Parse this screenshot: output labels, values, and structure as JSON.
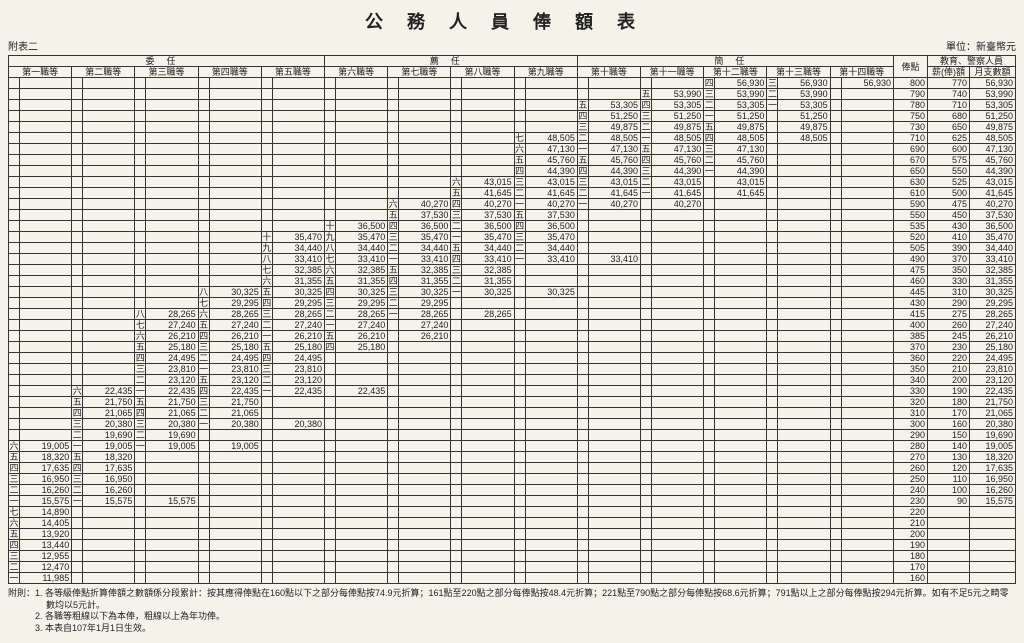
{
  "title": "公務人員俸額表",
  "attachment": "附表二",
  "unit": "單位：新臺幣元",
  "group_headers": [
    "委任",
    "薦任",
    "簡任"
  ],
  "grade_headers": [
    "第一職等",
    "第二職等",
    "第三職等",
    "第四職等",
    "第五職等",
    "第六職等",
    "第七職等",
    "第八職等",
    "第九職等",
    "第十職等",
    "第十一職等",
    "第十二職等",
    "第十三職等",
    "第十四職等"
  ],
  "right_headers": {
    "point": "俸點",
    "edu_group": "教育、警察人員",
    "salary": "薪(俸)額",
    "monthly": "月支數額"
  },
  "cn_num": {
    "1": "一",
    "2": "二",
    "3": "三",
    "4": "四",
    "5": "五",
    "6": "六",
    "7": "七",
    "8": "八",
    "9": "九",
    "10": "十"
  },
  "rows": [
    {
      "point": "800",
      "salary": "770",
      "monthly": "56,930",
      "cells": {
        "12": [
          "四",
          "56,930"
        ],
        "13": [
          "三",
          "56,930"
        ],
        "14": [
          "",
          "56,930"
        ]
      }
    },
    {
      "point": "790",
      "salary": "740",
      "monthly": "53,990",
      "cells": {
        "11": [
          "五",
          "53,990"
        ],
        "12": [
          "三",
          "53,990"
        ],
        "13": [
          "二",
          "53,990"
        ]
      }
    },
    {
      "point": "780",
      "salary": "710",
      "monthly": "53,305",
      "cells": {
        "10": [
          "五",
          "53,305"
        ],
        "11": [
          "四",
          "53,305"
        ],
        "12": [
          "二",
          "53,305"
        ],
        "13": [
          "一",
          "53,305"
        ]
      }
    },
    {
      "point": "750",
      "salary": "680",
      "monthly": "51,250",
      "cells": {
        "10": [
          "四",
          "51,250"
        ],
        "11": [
          "三",
          "51,250"
        ],
        "12": [
          "一",
          "51,250"
        ],
        "13": [
          "",
          "51,250"
        ]
      }
    },
    {
      "point": "730",
      "salary": "650",
      "monthly": "49,875",
      "cells": {
        "10": [
          "三",
          "49,875"
        ],
        "11": [
          "二",
          "49,875"
        ],
        "12": [
          "五",
          "49,875"
        ],
        "13": [
          "",
          "49,875"
        ]
      }
    },
    {
      "point": "710",
      "salary": "625",
      "monthly": "48,505",
      "cells": {
        "9": [
          "七",
          "48,505"
        ],
        "10": [
          "二",
          "48,505"
        ],
        "11": [
          "一",
          "48,505"
        ],
        "12": [
          "四",
          "48,505"
        ],
        "13": [
          "",
          "48,505"
        ]
      }
    },
    {
      "point": "690",
      "salary": "600",
      "monthly": "47,130",
      "cells": {
        "9": [
          "六",
          "47,130"
        ],
        "10": [
          "一",
          "47,130"
        ],
        "11": [
          "五",
          "47,130"
        ],
        "12": [
          "三",
          "47,130"
        ]
      }
    },
    {
      "point": "670",
      "salary": "575",
      "monthly": "45,760",
      "cells": {
        "9": [
          "五",
          "45,760"
        ],
        "10": [
          "五",
          "45,760"
        ],
        "11": [
          "四",
          "45,760"
        ],
        "12": [
          "二",
          "45,760"
        ]
      }
    },
    {
      "point": "650",
      "salary": "550",
      "monthly": "44,390",
      "cells": {
        "9": [
          "四",
          "44,390"
        ],
        "10": [
          "四",
          "44,390"
        ],
        "11": [
          "三",
          "44,390"
        ],
        "12": [
          "一",
          "44,390"
        ]
      }
    },
    {
      "point": "630",
      "salary": "525",
      "monthly": "43,015",
      "cells": {
        "8": [
          "六",
          "43,015"
        ],
        "9": [
          "三",
          "43,015"
        ],
        "10": [
          "三",
          "43,015"
        ],
        "11": [
          "二",
          "43,015"
        ],
        "12": [
          "",
          "43,015"
        ]
      }
    },
    {
      "point": "610",
      "salary": "500",
      "monthly": "41,645",
      "cells": {
        "8": [
          "五",
          "41,645"
        ],
        "9": [
          "二",
          "41,645"
        ],
        "10": [
          "二",
          "41,645"
        ],
        "11": [
          "一",
          "41,645"
        ],
        "12": [
          "",
          "41,645"
        ]
      }
    },
    {
      "point": "590",
      "salary": "475",
      "monthly": "40,270",
      "cells": {
        "7": [
          "六",
          "40,270"
        ],
        "8": [
          "四",
          "40,270"
        ],
        "9": [
          "一",
          "40,270"
        ],
        "10": [
          "一",
          "40,270"
        ],
        "11": [
          "",
          "40,270"
        ]
      }
    },
    {
      "point": "550",
      "salary": "450",
      "monthly": "37,530",
      "cells": {
        "7": [
          "五",
          "37,530"
        ],
        "8": [
          "三",
          "37,530"
        ],
        "9": [
          "五",
          "37,530"
        ]
      }
    },
    {
      "point": "535",
      "salary": "430",
      "monthly": "36,500",
      "cells": {
        "6": [
          "十",
          "36,500"
        ],
        "7": [
          "四",
          "36,500"
        ],
        "8": [
          "二",
          "36,500"
        ],
        "9": [
          "四",
          "36,500"
        ]
      }
    },
    {
      "point": "520",
      "salary": "410",
      "monthly": "35,470",
      "cells": {
        "5": [
          "十",
          "35,470"
        ],
        "6": [
          "九",
          "35,470"
        ],
        "7": [
          "三",
          "35,470"
        ],
        "8": [
          "一",
          "35,470"
        ],
        "9": [
          "三",
          "35,470"
        ]
      }
    },
    {
      "point": "505",
      "salary": "390",
      "monthly": "34,440",
      "cells": {
        "5": [
          "九",
          "34,440"
        ],
        "6": [
          "八",
          "34,440"
        ],
        "7": [
          "二",
          "34,440"
        ],
        "8": [
          "五",
          "34,440"
        ],
        "9": [
          "二",
          "34,440"
        ]
      }
    },
    {
      "point": "490",
      "salary": "370",
      "monthly": "33,410",
      "cells": {
        "5": [
          "八",
          "33,410"
        ],
        "6": [
          "七",
          "33,410"
        ],
        "7": [
          "一",
          "33,410"
        ],
        "8": [
          "四",
          "33,410"
        ],
        "9": [
          "一",
          "33,410"
        ],
        "10": [
          "",
          "33,410"
        ]
      }
    },
    {
      "point": "475",
      "salary": "350",
      "monthly": "32,385",
      "cells": {
        "5": [
          "七",
          "32,385"
        ],
        "6": [
          "六",
          "32,385"
        ],
        "7": [
          "五",
          "32,385"
        ],
        "8": [
          "三",
          "32,385"
        ]
      }
    },
    {
      "point": "460",
      "salary": "330",
      "monthly": "31,355",
      "cells": {
        "5": [
          "六",
          "31,355"
        ],
        "6": [
          "五",
          "31,355"
        ],
        "7": [
          "四",
          "31,355"
        ],
        "8": [
          "二",
          "31,355"
        ]
      }
    },
    {
      "point": "445",
      "salary": "310",
      "monthly": "30,325",
      "cells": {
        "4": [
          "八",
          "30,325"
        ],
        "5": [
          "五",
          "30,325"
        ],
        "6": [
          "四",
          "30,325"
        ],
        "7": [
          "三",
          "30,325"
        ],
        "8": [
          "一",
          "30,325"
        ],
        "9": [
          "",
          "30,325"
        ]
      }
    },
    {
      "point": "430",
      "salary": "290",
      "monthly": "29,295",
      "cells": {
        "4": [
          "七",
          "29,295"
        ],
        "5": [
          "四",
          "29,295"
        ],
        "6": [
          "三",
          "29,295"
        ],
        "7": [
          "二",
          "29,295"
        ]
      }
    },
    {
      "point": "415",
      "salary": "275",
      "monthly": "28,265",
      "cells": {
        "3": [
          "八",
          "28,265"
        ],
        "4": [
          "六",
          "28,265"
        ],
        "5": [
          "三",
          "28,265"
        ],
        "6": [
          "二",
          "28,265"
        ],
        "7": [
          "一",
          "28,265"
        ],
        "8": [
          "",
          "28,265"
        ]
      }
    },
    {
      "point": "400",
      "salary": "260",
      "monthly": "27,240",
      "cells": {
        "3": [
          "七",
          "27,240"
        ],
        "4": [
          "五",
          "27,240"
        ],
        "5": [
          "二",
          "27,240"
        ],
        "6": [
          "一",
          "27,240"
        ],
        "7": [
          "",
          "27,240"
        ]
      }
    },
    {
      "point": "385",
      "salary": "245",
      "monthly": "26,210",
      "cells": {
        "3": [
          "六",
          "26,210"
        ],
        "4": [
          "四",
          "26,210"
        ],
        "5": [
          "一",
          "26,210"
        ],
        "6": [
          "五",
          "26,210"
        ],
        "7": [
          "",
          "26,210"
        ]
      }
    },
    {
      "point": "370",
      "salary": "230",
      "monthly": "25,180",
      "cells": {
        "3": [
          "五",
          "25,180"
        ],
        "4": [
          "三",
          "25,180"
        ],
        "5": [
          "五",
          "25,180"
        ],
        "6": [
          "四",
          "25,180"
        ]
      }
    },
    {
      "point": "360",
      "salary": "220",
      "monthly": "24,495",
      "cells": {
        "3": [
          "四",
          "24,495"
        ],
        "4": [
          "二",
          "24,495"
        ],
        "5": [
          "四",
          "24,495"
        ]
      }
    },
    {
      "point": "350",
      "salary": "210",
      "monthly": "23,810",
      "cells": {
        "3": [
          "三",
          "23,810"
        ],
        "4": [
          "一",
          "23,810"
        ],
        "5": [
          "三",
          "23,810"
        ]
      }
    },
    {
      "point": "340",
      "salary": "200",
      "monthly": "23,120",
      "cells": {
        "3": [
          "二",
          "23,120"
        ],
        "4": [
          "五",
          "23,120"
        ],
        "5": [
          "二",
          "23,120"
        ]
      }
    },
    {
      "point": "330",
      "salary": "190",
      "monthly": "22,435",
      "cells": {
        "2": [
          "六",
          "22,435"
        ],
        "3": [
          "一",
          "22,435"
        ],
        "4": [
          "四",
          "22,435"
        ],
        "5": [
          "一",
          "22,435"
        ],
        "6": [
          "",
          "22,435"
        ]
      }
    },
    {
      "point": "320",
      "salary": "180",
      "monthly": "21,750",
      "cells": {
        "2": [
          "五",
          "21,750"
        ],
        "3": [
          "五",
          "21,750"
        ],
        "4": [
          "三",
          "21,750"
        ]
      }
    },
    {
      "point": "310",
      "salary": "170",
      "monthly": "21,065",
      "cells": {
        "2": [
          "四",
          "21,065"
        ],
        "3": [
          "四",
          "21,065"
        ],
        "4": [
          "二",
          "21,065"
        ]
      }
    },
    {
      "point": "300",
      "salary": "160",
      "monthly": "20,380",
      "cells": {
        "2": [
          "三",
          "20,380"
        ],
        "3": [
          "三",
          "20,380"
        ],
        "4": [
          "一",
          "20,380"
        ],
        "5": [
          "",
          "20,380"
        ]
      }
    },
    {
      "point": "290",
      "salary": "150",
      "monthly": "19,690",
      "cells": {
        "2": [
          "二",
          "19,690"
        ],
        "3": [
          "二",
          "19,690"
        ]
      }
    },
    {
      "point": "280",
      "salary": "140",
      "monthly": "19,005",
      "cells": {
        "1": [
          "六",
          "19,005"
        ],
        "2": [
          "一",
          "19,005"
        ],
        "3": [
          "一",
          "19,005"
        ],
        "4": [
          "",
          "19,005"
        ]
      }
    },
    {
      "point": "270",
      "salary": "130",
      "monthly": "18,320",
      "cells": {
        "1": [
          "五",
          "18,320"
        ],
        "2": [
          "五",
          "18,320"
        ]
      }
    },
    {
      "point": "260",
      "salary": "120",
      "monthly": "17,635",
      "cells": {
        "1": [
          "四",
          "17,635"
        ],
        "2": [
          "四",
          "17,635"
        ]
      }
    },
    {
      "point": "250",
      "salary": "110",
      "monthly": "16,950",
      "cells": {
        "1": [
          "三",
          "16,950"
        ],
        "2": [
          "三",
          "16,950"
        ]
      }
    },
    {
      "point": "240",
      "salary": "100",
      "monthly": "16,260",
      "cells": {
        "1": [
          "二",
          "16,260"
        ],
        "2": [
          "二",
          "16,260"
        ]
      }
    },
    {
      "point": "230",
      "salary": "90",
      "monthly": "15,575",
      "cells": {
        "1": [
          "一",
          "15,575"
        ],
        "2": [
          "一",
          "15,575"
        ],
        "3": [
          "",
          "15,575"
        ]
      }
    },
    {
      "point": "220",
      "salary": "",
      "monthly": "",
      "cells": {
        "1": [
          "七",
          "14,890"
        ]
      }
    },
    {
      "point": "210",
      "salary": "",
      "monthly": "",
      "cells": {
        "1": [
          "六",
          "14,405"
        ]
      }
    },
    {
      "point": "200",
      "salary": "",
      "monthly": "",
      "cells": {
        "1": [
          "五",
          "13,920"
        ]
      }
    },
    {
      "point": "190",
      "salary": "",
      "monthly": "",
      "cells": {
        "1": [
          "四",
          "13,440"
        ]
      }
    },
    {
      "point": "180",
      "salary": "",
      "monthly": "",
      "cells": {
        "1": [
          "三",
          "12,955"
        ]
      }
    },
    {
      "point": "170",
      "salary": "",
      "monthly": "",
      "cells": {
        "1": [
          "二",
          "12,470"
        ]
      }
    },
    {
      "point": "160",
      "salary": "",
      "monthly": "",
      "cells": {
        "1": [
          "一",
          "11,985"
        ]
      }
    }
  ],
  "notes": [
    "附則：1. 各等級俸點折算俸額之數額係分段累計：按其應得俸點在160點以下之部分每俸點按74.9元折算；161點至220點之部分每俸點按48.4元折算；221點至790點之部分每俸點按68.6元折算；791點以上之部分每俸點按294元折算。如有不足5元之畸零數均以5元計。",
    "　　　2. 各職等粗線以下為本俸，粗線以上為年功俸。",
    "　　　3. 本表自107年1月1日生效。"
  ]
}
